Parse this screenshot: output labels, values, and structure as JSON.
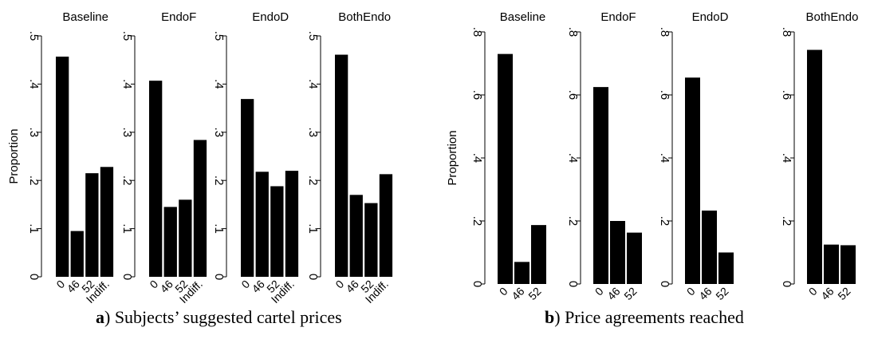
{
  "captions": {
    "a_letter": "a",
    "a_text": ") Subjects’ suggested cartel prices",
    "b_letter": "b",
    "b_text": ") Price agreements reached"
  },
  "chart_data": [
    {
      "type": "bar",
      "group": "a",
      "ylabel": "Proportion",
      "ylim": [
        0,
        0.5
      ],
      "yticks": [
        0,
        0.1,
        0.2,
        0.3,
        0.4,
        0.5
      ],
      "ytick_labels": [
        "0",
        ".1",
        ".2",
        ".3",
        ".4",
        ".5"
      ],
      "categories": [
        "0",
        "46",
        "52",
        "Indiff."
      ],
      "panels": [
        {
          "title": "Baseline",
          "values": [
            0.457,
            0.095,
            0.215,
            0.228
          ]
        },
        {
          "title": "EndoF",
          "values": [
            0.407,
            0.145,
            0.16,
            0.284
          ]
        },
        {
          "title": "EndoD",
          "values": [
            0.369,
            0.218,
            0.188,
            0.22
          ]
        },
        {
          "title": "BothEndo",
          "values": [
            0.461,
            0.17,
            0.153,
            0.213
          ]
        }
      ]
    },
    {
      "type": "bar",
      "group": "b",
      "ylabel": "Proportion",
      "ylim": [
        0,
        0.8
      ],
      "yticks": [
        0,
        0.2,
        0.4,
        0.6,
        0.8
      ],
      "ytick_labels": [
        "0",
        ".2",
        ".4",
        ".6",
        ".8"
      ],
      "categories": [
        "0",
        "46",
        "52"
      ],
      "panels": [
        {
          "title": "Baseline",
          "values": [
            0.73,
            0.07,
            0.187
          ]
        },
        {
          "title": "EndoF",
          "values": [
            0.625,
            0.2,
            0.163
          ]
        },
        {
          "title": "EndoD",
          "values": [
            0.655,
            0.233,
            0.1
          ]
        },
        {
          "title": "BothEndo",
          "values": [
            0.743,
            0.125,
            0.123
          ]
        }
      ]
    }
  ]
}
